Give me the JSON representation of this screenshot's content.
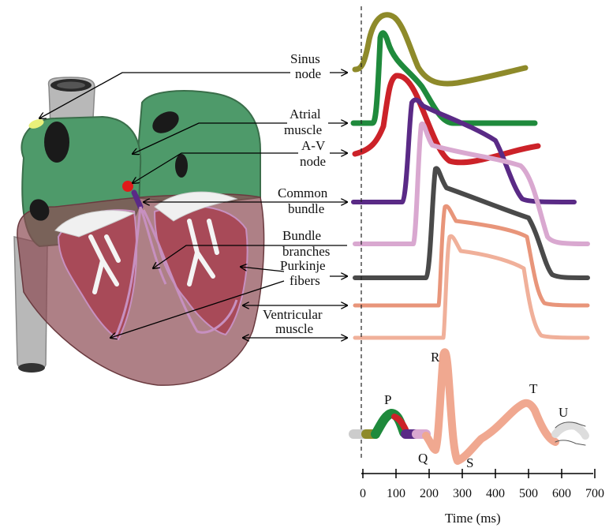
{
  "labels": {
    "sinus_1": "Sinus",
    "sinus_2": "node",
    "atrial_1": "Atrial",
    "atrial_2": "muscle",
    "av_1": "A-V",
    "av_2": "node",
    "common_1": "Common",
    "common_2": "bundle",
    "bundle_1": "Bundle",
    "bundle_2": "branches",
    "purkinje_1": "Purkinje",
    "purkinje_2": "fibers",
    "ventricular_1": "Ventricular",
    "ventricular_2": "muscle"
  },
  "ecg_waves": {
    "p": "P",
    "q": "Q",
    "r": "R",
    "s": "S",
    "t": "T",
    "u": "U"
  },
  "axis": {
    "xlabel": "Time (ms)",
    "ticks": [
      "0",
      "100",
      "200",
      "300",
      "400",
      "500",
      "600",
      "700"
    ]
  },
  "colors": {
    "sinus": "#8e8a2a",
    "atrial": "#1f8a3c",
    "av": "#cc2229",
    "common": "#5a2a86",
    "bundle_branches": "#d9a8d0",
    "purkinje": "#4a4a4a",
    "ventricular_1": "#e8957a",
    "ventricular_2": "#f0b09a",
    "heart_atria": "#4e9a6a",
    "heart_ventricle": "#8c4a52",
    "vessel": "#b8b8b8"
  }
}
